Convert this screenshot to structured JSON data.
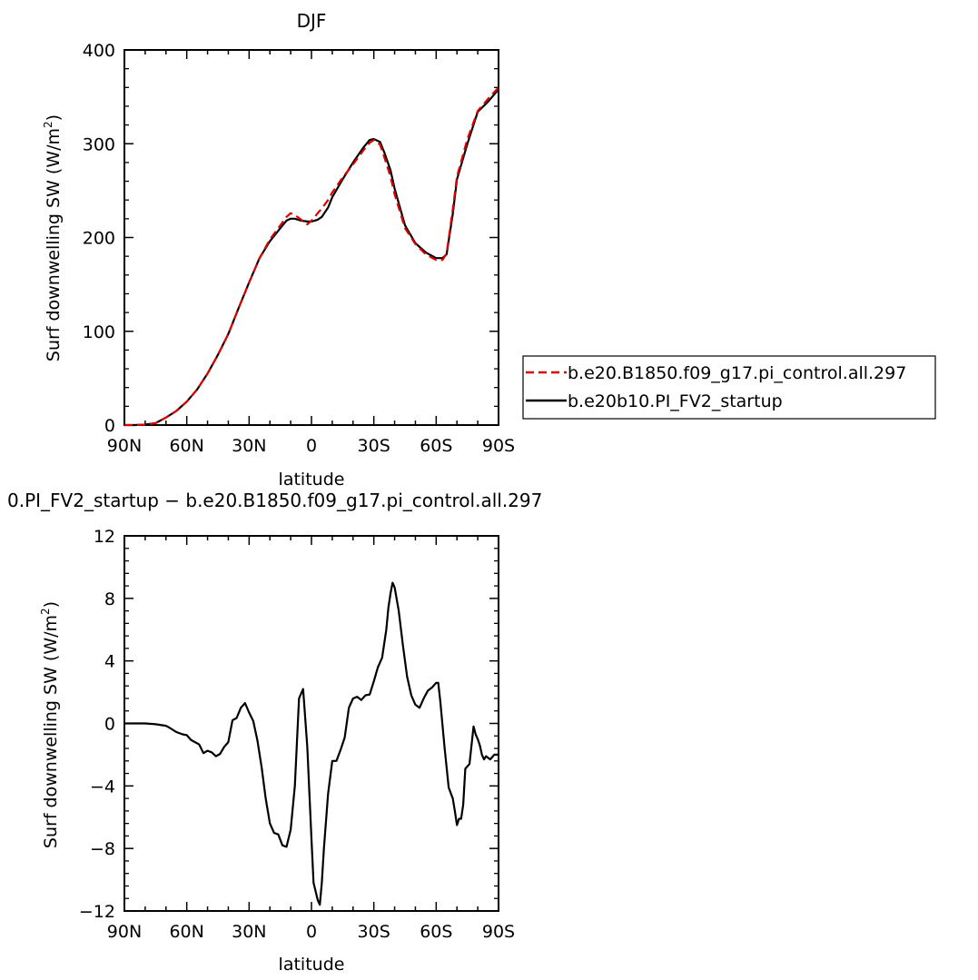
{
  "chart_data": [
    {
      "type": "line",
      "title": "DJF",
      "xlabel": "latitude",
      "ylabel_main": "Surf downwelling SW (W/m",
      "ylabel_sup": "2",
      "ylabel_close": ")",
      "xlim": [
        -90,
        90
      ],
      "ylim": [
        0,
        400
      ],
      "x_ticks": [
        {
          "v": -90,
          "label": "90N"
        },
        {
          "v": -60,
          "label": "60N"
        },
        {
          "v": -30,
          "label": "30N"
        },
        {
          "v": 0,
          "label": "0"
        },
        {
          "v": 30,
          "label": "30S"
        },
        {
          "v": 60,
          "label": "60S"
        },
        {
          "v": 90,
          "label": "90S"
        }
      ],
      "y_ticks": [
        0,
        100,
        200,
        300,
        400
      ],
      "legend_position": "right",
      "series": [
        {
          "name": "b.e20.B1850.f09_g17.pi_control.all.297",
          "color": "#e00000",
          "dash": "dashed",
          "x": [
            -90,
            -85,
            -80,
            -75,
            -70,
            -65,
            -60,
            -55,
            -50,
            -45,
            -40,
            -35,
            -30,
            -25,
            -20,
            -15,
            -12,
            -10,
            -8,
            -5,
            -2,
            0,
            3,
            5,
            8,
            10,
            15,
            20,
            25,
            28,
            30,
            33,
            35,
            38,
            40,
            45,
            50,
            55,
            60,
            63,
            65,
            68,
            70,
            75,
            80,
            85,
            90
          ],
          "values": [
            0,
            0,
            0.5,
            2,
            8,
            15,
            25,
            38,
            55,
            75,
            97,
            125,
            152,
            178,
            198,
            213,
            222,
            226,
            224,
            219,
            214,
            218,
            226,
            231,
            240,
            248,
            264,
            278,
            293,
            301,
            304,
            299,
            286,
            265,
            246,
            210,
            193,
            182,
            176,
            176,
            183,
            230,
            265,
            305,
            335,
            348,
            360
          ]
        },
        {
          "name": "b.e20b10.PI_FV2_startup",
          "color": "#000000",
          "dash": "solid",
          "x": [
            -90,
            -85,
            -80,
            -75,
            -70,
            -65,
            -60,
            -55,
            -50,
            -45,
            -40,
            -35,
            -30,
            -25,
            -20,
            -15,
            -12,
            -10,
            -8,
            -5,
            -2,
            0,
            3,
            5,
            8,
            10,
            15,
            20,
            25,
            28,
            30,
            33,
            35,
            38,
            40,
            45,
            50,
            55,
            60,
            63,
            65,
            68,
            70,
            75,
            80,
            85,
            90
          ],
          "values": [
            0,
            0,
            0.5,
            2,
            8,
            15,
            25,
            38,
            55,
            75,
            97,
            125,
            152,
            178,
            196,
            210,
            218,
            220,
            220,
            218,
            217,
            217,
            219,
            222,
            232,
            243,
            262,
            280,
            296,
            304,
            305,
            302,
            291,
            272,
            252,
            213,
            194,
            184,
            178,
            178,
            182,
            225,
            262,
            300,
            334,
            345,
            358
          ]
        }
      ]
    },
    {
      "type": "line",
      "title": "0.PI_FV2_startup − b.e20.B1850.f09_g17.pi_control.all.297",
      "xlabel": "latitude",
      "ylabel_main": "Surf downwelling SW (W/m",
      "ylabel_sup": "2",
      "ylabel_close": ")",
      "xlim": [
        -90,
        90
      ],
      "ylim": [
        -12,
        12
      ],
      "x_ticks": [
        {
          "v": -90,
          "label": "90N"
        },
        {
          "v": -60,
          "label": "60N"
        },
        {
          "v": -30,
          "label": "30N"
        },
        {
          "v": 0,
          "label": "0"
        },
        {
          "v": 30,
          "label": "30S"
        },
        {
          "v": 60,
          "label": "60S"
        },
        {
          "v": 90,
          "label": "90S"
        }
      ],
      "y_ticks": [
        -12,
        -8,
        -4,
        0,
        4,
        8,
        12
      ],
      "series": [
        {
          "name": "",
          "color": "#000000",
          "dash": "solid",
          "x": [
            -90,
            -80,
            -75,
            -70,
            -68,
            -65,
            -62,
            -60,
            -58,
            -56,
            -54,
            -52,
            -50,
            -48,
            -46,
            -44,
            -42,
            -40,
            -38,
            -36,
            -34,
            -32,
            -30,
            -28,
            -26,
            -24,
            -22,
            -20,
            -18,
            -16,
            -14,
            -12,
            -10,
            -8,
            -6,
            -4,
            -2,
            0,
            1,
            3,
            4,
            5,
            6,
            8,
            10,
            12,
            14,
            16,
            18,
            20,
            22,
            24,
            26,
            28,
            30,
            32,
            34,
            36,
            37,
            38,
            39,
            40,
            42,
            44,
            46,
            48,
            50,
            52,
            54,
            56,
            58,
            60,
            61,
            62,
            64,
            66,
            68,
            69,
            70,
            71,
            72,
            73,
            74,
            76,
            78,
            79,
            80,
            81,
            82,
            83,
            84,
            86,
            88,
            90
          ],
          "values": [
            0,
            0,
            -0.05,
            -0.15,
            -0.3,
            -0.55,
            -0.7,
            -0.75,
            -1.05,
            -1.2,
            -1.35,
            -1.9,
            -1.75,
            -1.85,
            -2.1,
            -1.95,
            -1.5,
            -1.2,
            0.2,
            0.35,
            1.0,
            1.3,
            0.7,
            0.15,
            -1.1,
            -2.8,
            -4.8,
            -6.4,
            -7.0,
            -7.1,
            -7.8,
            -7.9,
            -6.8,
            -4.0,
            1.6,
            2.2,
            -1.5,
            -7.4,
            -10.2,
            -11.3,
            -11.6,
            -10.2,
            -8.0,
            -4.5,
            -2.4,
            -2.4,
            -1.7,
            -0.9,
            1.0,
            1.6,
            1.7,
            1.5,
            1.8,
            1.85,
            2.7,
            3.6,
            4.2,
            6.0,
            7.4,
            8.3,
            9.0,
            8.7,
            7.2,
            5.0,
            3.0,
            1.8,
            1.2,
            1.0,
            1.6,
            2.1,
            2.3,
            2.6,
            2.6,
            1.4,
            -1.5,
            -4.1,
            -4.8,
            -5.6,
            -6.5,
            -6.1,
            -6.1,
            -5.2,
            -2.9,
            -2.6,
            -0.2,
            -0.7,
            -1.0,
            -1.4,
            -2.0,
            -2.3,
            -2.1,
            -2.3,
            -2.0,
            -2.0
          ]
        }
      ]
    }
  ]
}
